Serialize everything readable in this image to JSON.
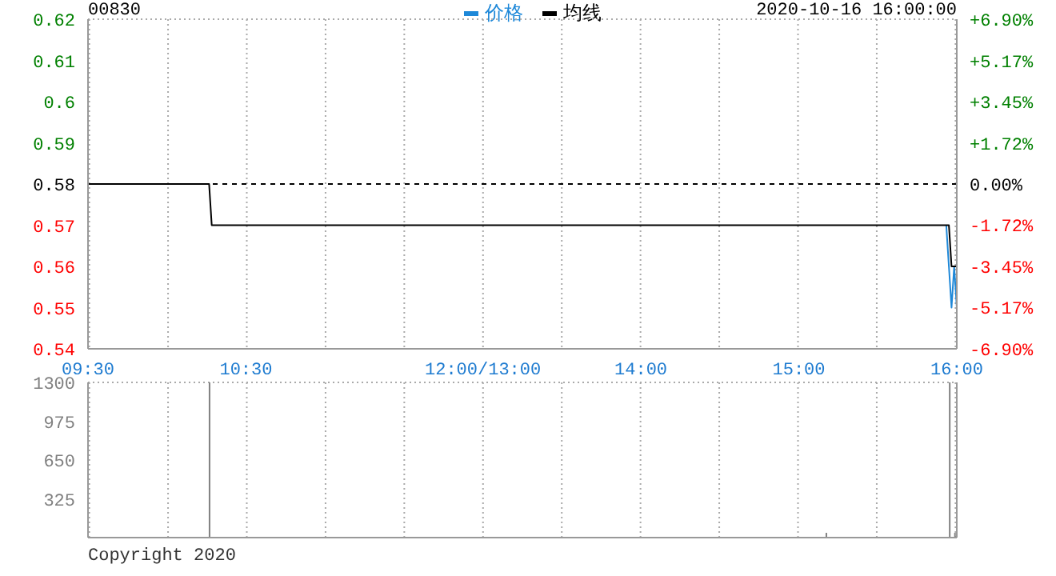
{
  "chart_data": {
    "type": "line",
    "title": "00830",
    "subtitle": "2020-10-16 16:00:00",
    "legend": "top",
    "grid": true,
    "line_style": "solid",
    "annotations": [
      "Copyright 2020"
    ],
    "categories": [
      "09:30",
      null,
      null,
      null,
      null,
      null,
      null,
      null,
      null,
      null,
      null,
      null,
      null,
      null,
      null,
      null,
      null,
      null,
      null,
      null,
      null,
      null,
      null,
      null,
      null,
      null,
      null,
      null,
      null,
      null,
      null,
      null,
      null,
      null,
      null,
      null,
      null,
      null,
      null,
      null,
      null,
      null,
      null,
      null,
      null,
      null,
      null,
      null,
      null,
      null,
      null,
      null,
      null,
      null,
      null,
      null,
      null,
      null,
      null,
      null,
      "10:30",
      null,
      null,
      null,
      null,
      null,
      null,
      null,
      null,
      null,
      null,
      null,
      null,
      null,
      null,
      null,
      null,
      null,
      null,
      null,
      null,
      null,
      null,
      null,
      null,
      null,
      null,
      null,
      null,
      null,
      null,
      null,
      null,
      null,
      null,
      null,
      null,
      null,
      null,
      null,
      null,
      null,
      null,
      null,
      null,
      null,
      null,
      null,
      null,
      null,
      null,
      null,
      null,
      null,
      null,
      null,
      null,
      null,
      null,
      null,
      null,
      null,
      null,
      null,
      null,
      null,
      null,
      null,
      null,
      null,
      null,
      null,
      null,
      null,
      null,
      null,
      null,
      null,
      null,
      null,
      null,
      null,
      null,
      null,
      null,
      null,
      null,
      null,
      null,
      null,
      "12:00/13:00",
      null,
      null,
      null,
      null,
      null,
      null,
      null,
      null,
      null,
      null,
      null,
      null,
      null,
      null,
      null,
      null,
      null,
      null,
      null,
      null,
      null,
      null,
      null,
      null,
      null,
      null,
      null,
      null,
      null,
      null,
      null,
      null,
      null,
      null,
      null,
      null,
      null,
      null,
      null,
      null,
      null,
      null,
      null,
      null,
      null,
      null,
      null,
      null,
      null,
      null,
      null,
      null,
      null,
      null,
      null,
      null,
      null,
      null,
      null,
      "14:00",
      null,
      null,
      null,
      null,
      null,
      null,
      null,
      null,
      null,
      null,
      null,
      null,
      null,
      null,
      null,
      null,
      null,
      null,
      null,
      null,
      null,
      null,
      null,
      null,
      null,
      null,
      null,
      null,
      null,
      null,
      null,
      null,
      null,
      null,
      null,
      null,
      null,
      null,
      null,
      null,
      null,
      null,
      null,
      null,
      null,
      null,
      null,
      null,
      null,
      null,
      null,
      null,
      null,
      null,
      null,
      null,
      null,
      null,
      null,
      "15:00",
      null,
      null,
      null,
      null,
      null,
      null,
      null,
      null,
      null,
      null,
      null,
      null,
      null,
      null,
      null,
      null,
      null,
      null,
      null,
      null,
      null,
      null,
      null,
      null,
      null,
      null,
      null,
      null,
      null,
      null,
      null,
      null,
      null,
      null,
      null,
      null,
      null,
      null,
      null,
      null,
      null,
      null,
      null,
      null,
      null,
      null,
      null,
      null,
      null,
      null,
      null,
      null,
      null,
      null,
      null,
      null,
      null,
      null,
      null,
      "16:00"
    ],
    "ylim": [
      0.54,
      0.62
    ],
    "yticks": [
      0.54,
      0.55,
      0.56,
      0.57,
      0.58,
      0.59,
      0.6,
      0.61,
      0.62
    ],
    "y2lim": [
      -6.9,
      6.9
    ],
    "y2ticks": [
      {
        "value": -6.9,
        "label": "-6.90%"
      },
      {
        "value": -5.17,
        "label": "-5.17%"
      },
      {
        "value": -3.45,
        "label": "-3.45%"
      },
      {
        "value": -1.72,
        "label": "-1.72%"
      },
      {
        "value": 0,
        "label": "0.00%"
      },
      {
        "value": 1.72,
        "label": "+1.72%"
      },
      {
        "value": 3.45,
        "label": "+3.45%"
      },
      {
        "value": 5.17,
        "label": "+5.17%"
      },
      {
        "value": 6.9,
        "label": "+6.90%"
      }
    ],
    "y3lim": [
      0,
      1300
    ],
    "y3ticks": [
      325,
      650,
      975,
      1300
    ],
    "ref_lines": [
      {
        "axis": "y",
        "value": 0.58,
        "color": "#000000",
        "line_style": "dashed"
      }
    ],
    "series": [
      {
        "name": "价格",
        "color": "#1e88d8",
        "values": [
          null,
          null,
          null,
          null,
          null,
          null,
          null,
          null,
          null,
          null,
          null,
          null,
          null,
          null,
          null,
          null,
          null,
          null,
          null,
          null,
          null,
          null,
          null,
          null,
          null,
          null,
          null,
          null,
          null,
          null,
          null,
          null,
          null,
          null,
          null,
          null,
          null,
          null,
          null,
          null,
          null,
          null,
          null,
          null,
          null,
          null,
          null,
          null,
          null,
          null,
          null,
          null,
          null,
          null,
          null,
          null,
          null,
          null,
          null,
          null,
          null,
          null,
          null,
          null,
          null,
          null,
          null,
          null,
          null,
          null,
          null,
          null,
          null,
          null,
          null,
          null,
          null,
          null,
          null,
          null,
          null,
          null,
          null,
          null,
          null,
          null,
          null,
          null,
          null,
          null,
          null,
          null,
          null,
          null,
          null,
          null,
          null,
          null,
          null,
          null,
          null,
          null,
          null,
          null,
          null,
          null,
          null,
          null,
          null,
          null,
          null,
          null,
          null,
          null,
          null,
          null,
          null,
          null,
          null,
          null,
          null,
          null,
          null,
          null,
          null,
          null,
          null,
          null,
          null,
          null,
          null,
          null,
          null,
          null,
          null,
          null,
          null,
          null,
          null,
          null,
          null,
          null,
          null,
          null,
          null,
          null,
          null,
          null,
          null,
          null,
          null,
          null,
          null,
          null,
          null,
          null,
          null,
          null,
          null,
          null,
          null,
          null,
          null,
          null,
          null,
          null,
          null,
          null,
          null,
          null,
          null,
          null,
          null,
          null,
          null,
          null,
          null,
          null,
          null,
          null,
          null,
          null,
          null,
          null,
          null,
          null,
          null,
          null,
          null,
          null,
          null,
          null,
          null,
          null,
          null,
          null,
          null,
          null,
          null,
          null,
          null,
          null,
          null,
          null,
          null,
          null,
          null,
          null,
          null,
          null,
          null,
          null,
          null,
          null,
          null,
          null,
          null,
          null,
          null,
          null,
          null,
          null,
          null,
          null,
          null,
          null,
          null,
          null,
          null,
          null,
          null,
          null,
          null,
          null,
          null,
          null,
          null,
          null,
          null,
          null,
          null,
          null,
          null,
          null,
          null,
          null,
          null,
          null,
          null,
          null,
          null,
          null,
          null,
          null,
          null,
          null,
          null,
          null,
          null,
          null,
          null,
          null,
          null,
          null,
          null,
          null,
          null,
          null,
          null,
          null,
          null,
          null,
          null,
          null,
          null,
          null,
          null,
          null,
          null,
          null,
          null,
          null,
          null,
          null,
          null,
          null,
          null,
          null,
          null,
          null,
          null,
          null,
          null,
          null,
          null,
          null,
          null,
          null,
          null,
          null,
          null,
          null,
          null,
          null,
          null,
          null,
          null,
          null,
          null,
          null,
          null,
          null,
          null,
          null,
          null,
          null,
          null,
          null,
          null,
          null,
          null,
          null,
          null,
          null,
          null,
          null,
          0.57,
          0.56,
          0.55,
          0.56,
          0.55
        ]
      },
      {
        "name": "均线",
        "color": "#000000",
        "values": [
          0.58,
          0.58,
          0.58,
          0.58,
          0.58,
          0.58,
          0.58,
          0.58,
          0.58,
          0.58,
          0.58,
          0.58,
          0.58,
          0.58,
          0.58,
          0.58,
          0.58,
          0.58,
          0.58,
          0.58,
          0.58,
          0.58,
          0.58,
          0.58,
          0.58,
          0.58,
          0.58,
          0.58,
          0.58,
          0.58,
          0.58,
          0.58,
          0.58,
          0.58,
          0.58,
          0.58,
          0.58,
          0.58,
          0.58,
          0.58,
          0.58,
          0.58,
          0.58,
          0.58,
          0.58,
          0.58,
          0.58,
          0.57,
          0.57,
          0.57,
          0.57,
          0.57,
          0.57,
          0.57,
          0.57,
          0.57,
          0.57,
          0.57,
          0.57,
          0.57,
          0.57,
          0.57,
          0.57,
          0.57,
          0.57,
          0.57,
          0.57,
          0.57,
          0.57,
          0.57,
          0.57,
          0.57,
          0.57,
          0.57,
          0.57,
          0.57,
          0.57,
          0.57,
          0.57,
          0.57,
          0.57,
          0.57,
          0.57,
          0.57,
          0.57,
          0.57,
          0.57,
          0.57,
          0.57,
          0.57,
          0.57,
          0.57,
          0.57,
          0.57,
          0.57,
          0.57,
          0.57,
          0.57,
          0.57,
          0.57,
          0.57,
          0.57,
          0.57,
          0.57,
          0.57,
          0.57,
          0.57,
          0.57,
          0.57,
          0.57,
          0.57,
          0.57,
          0.57,
          0.57,
          0.57,
          0.57,
          0.57,
          0.57,
          0.57,
          0.57,
          0.57,
          0.57,
          0.57,
          0.57,
          0.57,
          0.57,
          0.57,
          0.57,
          0.57,
          0.57,
          0.57,
          0.57,
          0.57,
          0.57,
          0.57,
          0.57,
          0.57,
          0.57,
          0.57,
          0.57,
          0.57,
          0.57,
          0.57,
          0.57,
          0.57,
          0.57,
          0.57,
          0.57,
          0.57,
          0.57,
          0.57,
          0.57,
          0.57,
          0.57,
          0.57,
          0.57,
          0.57,
          0.57,
          0.57,
          0.57,
          0.57,
          0.57,
          0.57,
          0.57,
          0.57,
          0.57,
          0.57,
          0.57,
          0.57,
          0.57,
          0.57,
          0.57,
          0.57,
          0.57,
          0.57,
          0.57,
          0.57,
          0.57,
          0.57,
          0.57,
          0.57,
          0.57,
          0.57,
          0.57,
          0.57,
          0.57,
          0.57,
          0.57,
          0.57,
          0.57,
          0.57,
          0.57,
          0.57,
          0.57,
          0.57,
          0.57,
          0.57,
          0.57,
          0.57,
          0.57,
          0.57,
          0.57,
          0.57,
          0.57,
          0.57,
          0.57,
          0.57,
          0.57,
          0.57,
          0.57,
          0.57,
          0.57,
          0.57,
          0.57,
          0.57,
          0.57,
          0.57,
          0.57,
          0.57,
          0.57,
          0.57,
          0.57,
          0.57,
          0.57,
          0.57,
          0.57,
          0.57,
          0.57,
          0.57,
          0.57,
          0.57,
          0.57,
          0.57,
          0.57,
          0.57,
          0.57,
          0.57,
          0.57,
          0.57,
          0.57,
          0.57,
          0.57,
          0.57,
          0.57,
          0.57,
          0.57,
          0.57,
          0.57,
          0.57,
          0.57,
          0.57,
          0.57,
          0.57,
          0.57,
          0.57,
          0.57,
          0.57,
          0.57,
          0.57,
          0.57,
          0.57,
          0.57,
          0.57,
          0.57,
          0.57,
          0.57,
          0.57,
          0.57,
          0.57,
          0.57,
          0.57,
          0.57,
          0.57,
          0.57,
          0.57,
          0.57,
          0.57,
          0.57,
          0.57,
          0.57,
          0.57,
          0.57,
          0.57,
          0.57,
          0.57,
          0.57,
          0.57,
          0.57,
          0.57,
          0.57,
          0.57,
          0.57,
          0.57,
          0.57,
          0.57,
          0.57,
          0.57,
          0.57,
          0.57,
          0.57,
          0.57,
          0.57,
          0.57,
          0.57,
          0.57,
          0.57,
          0.57,
          0.57,
          0.57,
          0.57,
          0.57,
          0.57,
          0.57,
          0.57,
          0.57,
          0.57,
          0.57,
          0.57,
          0.57,
          0.57,
          0.57,
          0.57,
          0.57,
          0.57,
          0.57,
          0.57,
          0.57,
          0.57,
          0.56,
          0.56,
          0.56
        ]
      },
      {
        "type": "bar",
        "axis": "y3",
        "color": "#808080",
        "values": [
          null,
          null,
          null,
          null,
          null,
          null,
          null,
          null,
          null,
          null,
          null,
          null,
          null,
          null,
          null,
          null,
          null,
          null,
          null,
          null,
          null,
          null,
          null,
          null,
          null,
          null,
          null,
          null,
          null,
          null,
          null,
          null,
          null,
          null,
          null,
          null,
          null,
          null,
          null,
          null,
          null,
          null,
          null,
          null,
          null,
          null,
          1300,
          null,
          null,
          null,
          null,
          null,
          null,
          null,
          null,
          null,
          null,
          null,
          null,
          null,
          null,
          null,
          null,
          null,
          null,
          null,
          null,
          null,
          null,
          null,
          null,
          null,
          null,
          null,
          null,
          null,
          null,
          null,
          null,
          null,
          null,
          null,
          null,
          null,
          null,
          null,
          null,
          null,
          null,
          null,
          null,
          null,
          null,
          null,
          null,
          null,
          null,
          null,
          null,
          null,
          null,
          null,
          null,
          null,
          null,
          null,
          null,
          null,
          null,
          null,
          null,
          null,
          null,
          null,
          null,
          null,
          null,
          null,
          null,
          null,
          null,
          null,
          null,
          null,
          null,
          null,
          null,
          null,
          null,
          null,
          null,
          null,
          null,
          null,
          null,
          null,
          null,
          null,
          null,
          null,
          null,
          null,
          null,
          null,
          null,
          null,
          null,
          null,
          null,
          null,
          null,
          null,
          null,
          null,
          null,
          null,
          null,
          null,
          null,
          null,
          null,
          null,
          null,
          null,
          null,
          null,
          null,
          null,
          null,
          null,
          null,
          null,
          null,
          null,
          null,
          null,
          null,
          null,
          null,
          null,
          null,
          null,
          null,
          null,
          null,
          null,
          null,
          null,
          null,
          null,
          null,
          null,
          null,
          null,
          null,
          null,
          null,
          null,
          null,
          null,
          null,
          null,
          null,
          null,
          null,
          null,
          null,
          null,
          null,
          null,
          null,
          null,
          null,
          null,
          null,
          null,
          null,
          null,
          null,
          null,
          null,
          null,
          null,
          null,
          null,
          null,
          null,
          null,
          null,
          null,
          null,
          null,
          null,
          null,
          null,
          null,
          null,
          null,
          null,
          null,
          null,
          null,
          null,
          null,
          null,
          null,
          null,
          null,
          null,
          null,
          null,
          null,
          null,
          null,
          null,
          null,
          null,
          null,
          null,
          null,
          null,
          null,
          null,
          null,
          null,
          null,
          null,
          null,
          null,
          null,
          null,
          null,
          null,
          null,
          null,
          null,
          null,
          null,
          null,
          null,
          null,
          40,
          null,
          null,
          null,
          null,
          null,
          null,
          null,
          null,
          null,
          null,
          null,
          null,
          null,
          null,
          null,
          null,
          null,
          null,
          null,
          null,
          null,
          null,
          null,
          null,
          null,
          null,
          null,
          null,
          null,
          null,
          null,
          null,
          null,
          null,
          null,
          null,
          null,
          null,
          null,
          null,
          null,
          null,
          null,
          null,
          null,
          null,
          1300,
          null,
          40
        ]
      }
    ]
  }
}
